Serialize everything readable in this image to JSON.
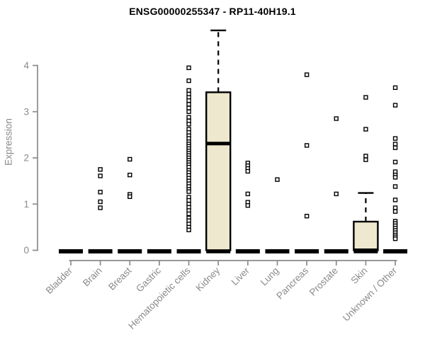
{
  "chart_data": {
    "type": "boxplot",
    "title": "ENSG00000255347 - RP11-40H19.1",
    "xlabel": "",
    "ylabel": "Expression",
    "yticks": [
      0,
      1,
      2,
      3,
      4
    ],
    "ylim": [
      0,
      4.9
    ],
    "grid": false,
    "legend": "none",
    "categories": [
      "Bladder",
      "Brain",
      "Breast",
      "Gastric",
      "Hematopoietic cells",
      "Kidney",
      "Liver",
      "Lung",
      "Pancreas",
      "Prostate",
      "Skin",
      "Unknown / Other"
    ],
    "series": [
      {
        "name": "Bladder",
        "q1": 0,
        "median": 0,
        "q3": 0,
        "whisker_low": 0,
        "whisker_high": 0,
        "outliers": []
      },
      {
        "name": "Brain",
        "q1": 0,
        "median": 0,
        "q3": 0,
        "whisker_low": 0,
        "whisker_high": 0,
        "outliers": [
          1.75,
          1.61,
          1.26,
          1.05,
          0.92
        ]
      },
      {
        "name": "Breast",
        "q1": 0,
        "median": 0,
        "q3": 0,
        "whisker_low": 0,
        "whisker_high": 0,
        "outliers": [
          1.97,
          1.63,
          1.21,
          1.16
        ]
      },
      {
        "name": "Gastric",
        "q1": 0,
        "median": 0,
        "q3": 0,
        "whisker_low": 0,
        "whisker_high": 0,
        "outliers": []
      },
      {
        "name": "Hematopoietic cells",
        "q1": 0,
        "median": 0,
        "q3": 0,
        "whisker_low": 0,
        "whisker_high": 0,
        "outliers": [
          3.95,
          3.67,
          3.46,
          3.38,
          3.31,
          3.24,
          3.16,
          3.08,
          3.0,
          2.88,
          2.8,
          2.73,
          2.62,
          2.55,
          2.48,
          2.42,
          2.35,
          2.3,
          2.25,
          2.2,
          2.15,
          2.1,
          2.05,
          2.0,
          1.95,
          1.9,
          1.85,
          1.8,
          1.73,
          1.68,
          1.62,
          1.56,
          1.5,
          1.44,
          1.38,
          1.32,
          1.27,
          1.15,
          1.08,
          1.0,
          0.93,
          0.86,
          0.79,
          0.7,
          0.64,
          0.57,
          0.5,
          0.44
        ]
      },
      {
        "name": "Kidney",
        "q1": 0,
        "median": 2.31,
        "q3": 3.42,
        "whisker_low": 0,
        "whisker_high": 4.76,
        "outliers": []
      },
      {
        "name": "Liver",
        "q1": 0,
        "median": 0,
        "q3": 0,
        "whisker_low": 0,
        "whisker_high": 0,
        "outliers": [
          1.89,
          1.83,
          1.77,
          1.71,
          1.22,
          1.04,
          0.97
        ]
      },
      {
        "name": "Lung",
        "q1": 0,
        "median": 0,
        "q3": 0,
        "whisker_low": 0,
        "whisker_high": 0,
        "outliers": [
          1.53
        ]
      },
      {
        "name": "Pancreas",
        "q1": 0,
        "median": 0,
        "q3": 0,
        "whisker_low": 0,
        "whisker_high": 0,
        "outliers": [
          3.8,
          2.27,
          0.74
        ]
      },
      {
        "name": "Prostate",
        "q1": 0,
        "median": 0,
        "q3": 0,
        "whisker_low": 0,
        "whisker_high": 0,
        "outliers": [
          2.85,
          1.22
        ]
      },
      {
        "name": "Skin",
        "q1": 0,
        "median": 0,
        "q3": 0.62,
        "whisker_low": 0,
        "whisker_high": 1.24,
        "outliers": [
          3.31,
          2.62,
          2.04,
          1.96
        ]
      },
      {
        "name": "Unknown / Other",
        "q1": 0,
        "median": 0,
        "q3": 0,
        "whisker_low": 0,
        "whisker_high": 0,
        "outliers": [
          3.52,
          3.14,
          2.42,
          2.3,
          2.22,
          1.91,
          1.7,
          1.63,
          1.58,
          1.38,
          1.09,
          0.92,
          0.84,
          0.63,
          0.58,
          0.53,
          0.48,
          0.43,
          0.38,
          0.33,
          0.29,
          0.25
        ]
      }
    ],
    "colors": {
      "box_fill": "#EEE8CE",
      "box_stroke": "#000000",
      "median": "#000000",
      "outlier_stroke": "#000000",
      "outlier_fill": "#FFFFFF",
      "axis": "#8A8A8A",
      "tick_label": "#8A8A8A",
      "title": "#000000",
      "background": "#FFFFFF"
    }
  }
}
